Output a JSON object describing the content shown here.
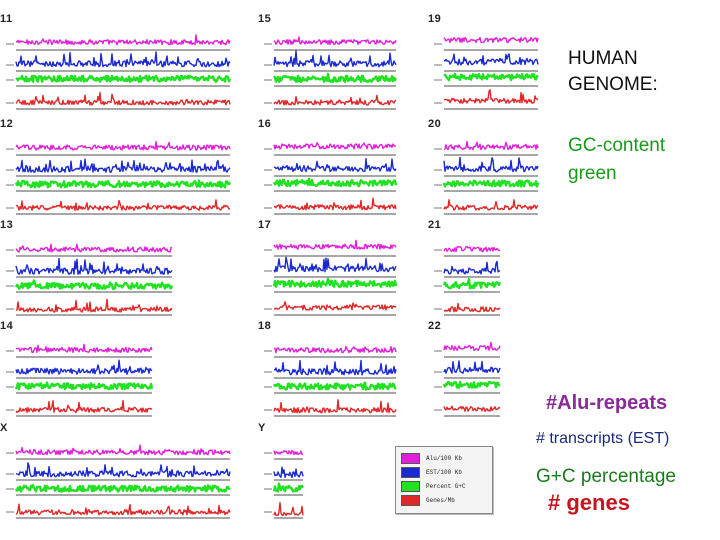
{
  "title_lines": [
    "HUMAN",
    "GENOME:"
  ],
  "gc_note_lines": [
    "GC-content",
    "green"
  ],
  "side_labels": {
    "alu": "#Alu-repeats",
    "est": "# transcripts (EST)",
    "gc": "G+C percentage",
    "genes": "# genes"
  },
  "colors": {
    "alu": "#e020d8",
    "est": "#1a2ad0",
    "gc": "#22e022",
    "genes": "#e02828",
    "axis": "#8a8a8a"
  },
  "legend": [
    {
      "label": "Alu/100 Kb",
      "color": "#e020d8"
    },
    {
      "label": "EST/100 Kb",
      "color": "#1a2ad0"
    },
    {
      "label": "Percent G+C",
      "color": "#22e022"
    },
    {
      "label": "Genes/Mb",
      "color": "#e02828"
    }
  ],
  "chromosomes": [
    {
      "label": "11",
      "alu_level": 0.55,
      "est_level": 0.45,
      "gc_level": 0.45,
      "gene_level": 0.35
    },
    {
      "label": "12",
      "alu_level": 0.5,
      "est_level": 0.4,
      "gc_level": 0.4,
      "gene_level": 0.3
    },
    {
      "label": "13",
      "alu_level": 0.35,
      "est_level": 0.25,
      "gc_level": 0.3,
      "gene_level": 0.2
    },
    {
      "label": "14",
      "alu_level": 0.45,
      "est_level": 0.4,
      "gc_level": 0.4,
      "gene_level": 0.3
    },
    {
      "label": "X",
      "alu_level": 0.4,
      "est_level": 0.3,
      "gc_level": 0.35,
      "gene_level": 0.25
    },
    {
      "label": "15",
      "alu_level": 0.55,
      "est_level": 0.45,
      "gc_level": 0.45,
      "gene_level": 0.35
    },
    {
      "label": "16",
      "alu_level": 0.65,
      "est_level": 0.5,
      "gc_level": 0.55,
      "gene_level": 0.4
    },
    {
      "label": "17",
      "alu_level": 0.75,
      "est_level": 0.6,
      "gc_level": 0.6,
      "gene_level": 0.5
    },
    {
      "label": "18",
      "alu_level": 0.4,
      "est_level": 0.3,
      "gc_level": 0.35,
      "gene_level": 0.25
    },
    {
      "label": "Y",
      "alu_level": 0.3,
      "est_level": 0.2,
      "gc_level": 0.35,
      "gene_level": 0.15
    },
    {
      "label": "19",
      "alu_level": 0.85,
      "est_level": 0.7,
      "gc_level": 0.7,
      "gene_level": 0.6
    },
    {
      "label": "20",
      "alu_level": 0.55,
      "est_level": 0.45,
      "gc_level": 0.5,
      "gene_level": 0.35
    },
    {
      "label": "21",
      "alu_level": 0.4,
      "est_level": 0.3,
      "gc_level": 0.4,
      "gene_level": 0.25
    },
    {
      "label": "22",
      "alu_level": 0.7,
      "est_level": 0.55,
      "gc_level": 0.6,
      "gene_level": 0.45
    }
  ]
}
